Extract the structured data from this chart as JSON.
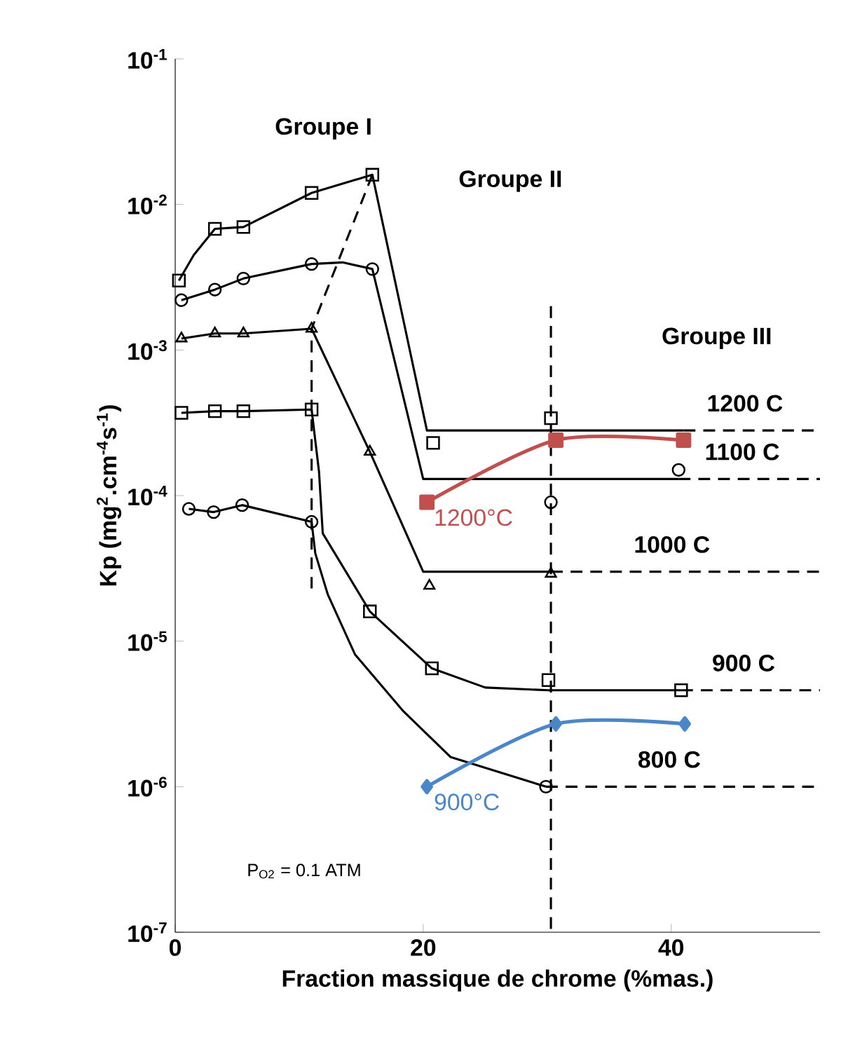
{
  "chart_data": {
    "type": "line",
    "xlabel": "Fraction massique de chrome (%mas.)",
    "ylabel": "Kp (mg$^{2}$.cm$^{-4}$s$^{-1}$)",
    "xlim": [
      0,
      52
    ],
    "xticks": [
      0,
      20,
      40
    ],
    "ylim": [
      1e-07,
      0.1
    ],
    "yticks": [
      {
        "value": 1e-07,
        "label": "10$^{-7}$"
      },
      {
        "value": 1e-06,
        "label": "10$^{-6}$"
      },
      {
        "value": 1e-05,
        "label": "10$^{-5}$"
      },
      {
        "value": 0.0001,
        "label": "10$^{-4}$"
      },
      {
        "value": 0.001,
        "label": "10$^{-3}$"
      },
      {
        "value": 0.01,
        "label": "10$^{-2}$"
      },
      {
        "value": 0.1,
        "label": "10$^{-1}$"
      }
    ],
    "log": "y",
    "grid": false,
    "series": [
      {
        "type": "line",
        "color": "#000000",
        "marker": "none",
        "line_style": "solid",
        "x": [
          0.3,
          1.5,
          3.2,
          5.5,
          11,
          15.9,
          20.3,
          41
        ],
        "values": [
          0.003,
          0.0045,
          0.0068,
          0.007,
          0.012,
          0.016,
          0.00028,
          0.00028
        ]
      },
      {
        "type": "scatter",
        "color": "#000000",
        "marker": "square",
        "x": [
          0.3,
          3.2,
          5.5,
          11,
          15.9,
          20.8,
          30.3
        ],
        "values": [
          0.003,
          0.0068,
          0.007,
          0.012,
          0.016,
          0.00023,
          0.00034
        ]
      },
      {
        "name": "1200  C",
        "color": "#000000",
        "marker": "none",
        "line_style": "dashed",
        "x": [
          41,
          52
        ],
        "values": [
          0.00028,
          0.00028
        ]
      },
      {
        "type": "line",
        "color": "#000000",
        "marker": "none",
        "line_style": "solid",
        "x": [
          0.5,
          3.2,
          5.5,
          11,
          13.5,
          15.9,
          20,
          40.6
        ],
        "values": [
          0.0022,
          0.0026,
          0.0031,
          0.0039,
          0.004,
          0.0036,
          0.00013,
          0.00013
        ]
      },
      {
        "type": "scatter",
        "color": "#000000",
        "marker": "circle",
        "x": [
          0.5,
          3.2,
          5.5,
          11,
          15.9,
          30.3,
          40.6
        ],
        "values": [
          0.0022,
          0.0026,
          0.0031,
          0.0039,
          0.0036,
          9e-05,
          0.00015
        ]
      },
      {
        "name": "1100  C",
        "color": "#000000",
        "marker": "none",
        "line_style": "dashed",
        "x": [
          40.6,
          52
        ],
        "values": [
          0.00013,
          0.00013
        ]
      },
      {
        "type": "line",
        "color": "#000000",
        "marker": "none",
        "line_style": "solid",
        "x": [
          0.5,
          3.2,
          5.5,
          11,
          15.7,
          20,
          30.3
        ],
        "values": [
          0.0012,
          0.0013,
          0.0013,
          0.0014,
          0.0002,
          3e-05,
          3e-05
        ]
      },
      {
        "type": "scatter",
        "color": "#000000",
        "marker": "triangle",
        "x": [
          0.5,
          3.2,
          5.5,
          11,
          15.7,
          20.5,
          30.3
        ],
        "values": [
          0.0012,
          0.0013,
          0.0013,
          0.0014,
          0.0002,
          2.4e-05,
          2.9e-05
        ]
      },
      {
        "name": "1000  C",
        "color": "#000000",
        "marker": "none",
        "line_style": "dashed",
        "x": [
          30.3,
          52
        ],
        "values": [
          3e-05,
          3e-05
        ]
      },
      {
        "type": "line",
        "color": "#000000",
        "marker": "none",
        "line_style": "solid",
        "x": [
          0.5,
          3.2,
          5.5,
          11,
          11.6,
          11.9,
          15.7,
          20.7,
          25,
          30.1,
          40.8
        ],
        "values": [
          0.00037,
          0.00038,
          0.00038,
          0.00039,
          0.000145,
          5.5e-05,
          1.6e-05,
          6.5e-06,
          4.8e-06,
          4.6e-06,
          4.6e-06
        ]
      },
      {
        "type": "scatter",
        "color": "#000000",
        "marker": "square",
        "x": [
          0.5,
          3.2,
          5.5,
          11,
          15.7,
          20.7,
          30.1,
          40.8
        ],
        "values": [
          0.00037,
          0.00038,
          0.00038,
          0.00039,
          1.6e-05,
          6.5e-06,
          5.4e-06,
          4.6e-06
        ]
      },
      {
        "name": "900  C",
        "color": "#000000",
        "marker": "none",
        "line_style": "dashed",
        "x": [
          40.8,
          52
        ],
        "values": [
          4.6e-06,
          4.6e-06
        ]
      },
      {
        "type": "line",
        "color": "#000000",
        "marker": "none",
        "line_style": "solid",
        "x": [
          1.1,
          3.1,
          5.4,
          11,
          11.3,
          12.3,
          14.5,
          18.4,
          22.2,
          29.9
        ],
        "values": [
          8.1e-05,
          7.7e-05,
          8.6e-05,
          6.6e-05,
          4e-05,
          2.1e-05,
          8.1e-06,
          3.3e-06,
          1.6e-06,
          1e-06
        ]
      },
      {
        "type": "scatter",
        "color": "#000000",
        "marker": "circle",
        "x": [
          1.1,
          3.1,
          5.4,
          11,
          29.9
        ],
        "values": [
          8.1e-05,
          7.7e-05,
          8.6e-05,
          6.6e-05,
          1e-06
        ]
      },
      {
        "name": "800  C",
        "color": "#000000",
        "marker": "none",
        "line_style": "dashed",
        "x": [
          29.9,
          52
        ],
        "values": [
          1e-06,
          1e-06
        ]
      },
      {
        "type": "line",
        "color": "#000000",
        "marker": "none",
        "line_style": "dashed",
        "x": [
          15.9,
          11,
          11
        ],
        "values": [
          0.016,
          0.0014,
          2.3e-05
        ]
      },
      {
        "type": "line",
        "color": "#000000",
        "marker": "none",
        "line_style": "dashed",
        "x": [
          30.3,
          30.3
        ],
        "values": [
          0.002,
          1e-07
        ]
      },
      {
        "type": "line",
        "name": "1200°C",
        "color": "#c0504d",
        "marker": "square",
        "line_style": "solid",
        "x": [
          20.3,
          30.7,
          41
        ],
        "values": [
          9e-05,
          0.00024,
          0.00024
        ]
      },
      {
        "type": "line",
        "name": "900°C",
        "color": "#4a86c8",
        "marker": "diamond",
        "line_style": "solid",
        "x": [
          20.3,
          30.7,
          41.1
        ],
        "values": [
          1e-06,
          2.7e-06,
          2.7e-06
        ]
      }
    ],
    "annotations": [
      "Groupe I",
      "Groupe II",
      "Groupe III",
      "P$_{O2}$ = 0.1 ATM"
    ]
  }
}
